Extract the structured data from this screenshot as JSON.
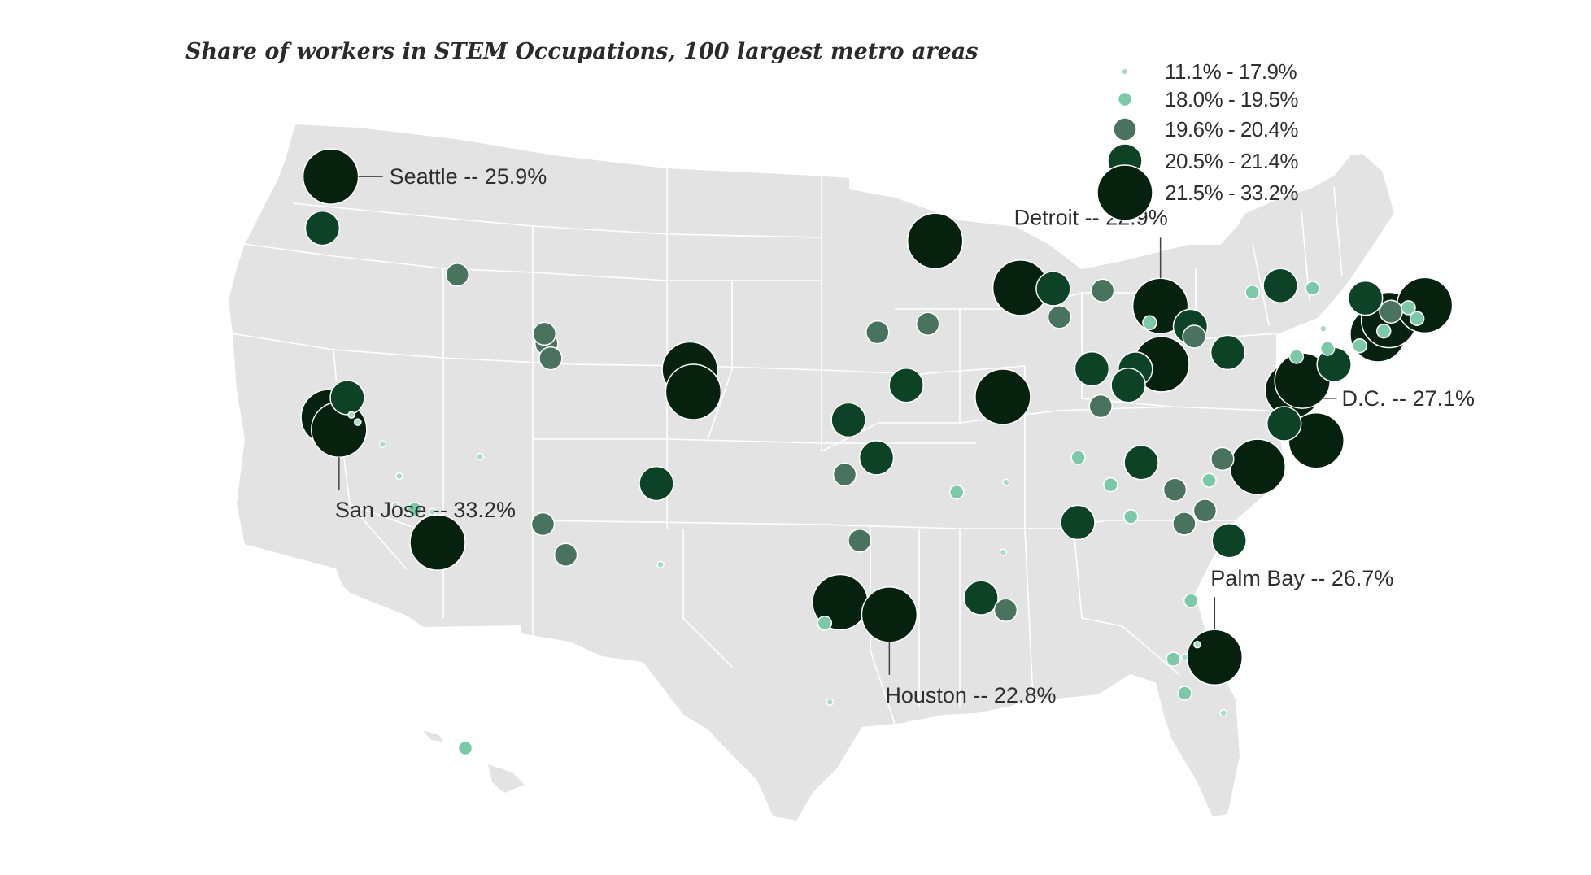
{
  "title": "Share of workers in STEM Occupations, 100 largest metro areas",
  "colors": {
    "land": "#e3e3e3",
    "border": "#ffffff",
    "bins": [
      "#a8dcc8",
      "#7cc8a9",
      "#4a735f",
      "#0e4227",
      "#06220f"
    ]
  },
  "legend": [
    {
      "label": "11.1% - 17.9%",
      "bin": 0
    },
    {
      "label": "18.0% - 19.5%",
      "bin": 1
    },
    {
      "label": "19.6% - 20.4%",
      "bin": 2
    },
    {
      "label": "20.5% - 21.4%",
      "bin": 3
    },
    {
      "label": "21.5% - 33.2%",
      "bin": 4
    }
  ],
  "callouts": [
    {
      "city": "Seattle",
      "text": "Seattle -- 25.9%"
    },
    {
      "city": "Detroit",
      "text": "Detroit -- 22.9%"
    },
    {
      "city": "D.C.",
      "text": "D.C. -- 27.1%"
    },
    {
      "city": "San Jose",
      "text": "San Jose -- 33.2%"
    },
    {
      "city": "Palm Bay",
      "text": "Palm Bay -- 26.7%"
    },
    {
      "city": "Houston",
      "text": "Houston -- 22.8%"
    }
  ],
  "metros": [
    {
      "name": "Seattle",
      "lat": 47.6,
      "lon": -122.3,
      "bin": 4
    },
    {
      "name": "Portland",
      "lat": 45.5,
      "lon": -122.7,
      "bin": 3
    },
    {
      "name": "Boise",
      "lat": 43.6,
      "lon": -116.2,
      "bin": 2
    },
    {
      "name": "Salt Lake City",
      "lat": 40.8,
      "lon": -111.9,
      "bin": 2
    },
    {
      "name": "Ogden",
      "lat": 41.2,
      "lon": -112.0,
      "bin": 2
    },
    {
      "name": "Provo",
      "lat": 40.2,
      "lon": -111.7,
      "bin": 2
    },
    {
      "name": "San Francisco",
      "lat": 37.8,
      "lon": -122.4,
      "bin": 4
    },
    {
      "name": "San Jose",
      "lat": 37.3,
      "lon": -121.9,
      "bin": 4
    },
    {
      "name": "Sacramento",
      "lat": 38.6,
      "lon": -121.5,
      "bin": 3
    },
    {
      "name": "Stockton",
      "lat": 37.9,
      "lon": -121.3,
      "bin": 0
    },
    {
      "name": "Modesto",
      "lat": 37.6,
      "lon": -121.0,
      "bin": 0
    },
    {
      "name": "Fresno",
      "lat": 36.7,
      "lon": -119.8,
      "bin": 0
    },
    {
      "name": "Bakersfield",
      "lat": 35.4,
      "lon": -119.0,
      "bin": 0
    },
    {
      "name": "Los Angeles",
      "lat": 34.05,
      "lon": -118.25,
      "bin": 1
    },
    {
      "name": "Oxnard",
      "lat": 34.2,
      "lon": -119.2,
      "bin": 0
    },
    {
      "name": "Riverside",
      "lat": 33.95,
      "lon": -117.4,
      "bin": 0
    },
    {
      "name": "San Diego",
      "lat": 32.7,
      "lon": -117.15,
      "bin": 4
    },
    {
      "name": "Las Vegas",
      "lat": 36.2,
      "lon": -115.1,
      "bin": 0
    },
    {
      "name": "Phoenix",
      "lat": 33.45,
      "lon": -112.07,
      "bin": 2
    },
    {
      "name": "Tucson",
      "lat": 32.2,
      "lon": -110.97,
      "bin": 2
    },
    {
      "name": "Albuquerque",
      "lat": 35.1,
      "lon": -106.6,
      "bin": 3
    },
    {
      "name": "El Paso",
      "lat": 31.8,
      "lon": -106.4,
      "bin": 0
    },
    {
      "name": "Denver",
      "lat": 39.74,
      "lon": -104.99,
      "bin": 4
    },
    {
      "name": "Colorado Springs",
      "lat": 38.83,
      "lon": -104.82,
      "bin": 4
    },
    {
      "name": "Minneapolis",
      "lat": 44.98,
      "lon": -93.27,
      "bin": 4
    },
    {
      "name": "Omaha",
      "lat": 41.26,
      "lon": -95.94,
      "bin": 2
    },
    {
      "name": "Des Moines",
      "lat": 41.6,
      "lon": -93.6,
      "bin": 2
    },
    {
      "name": "Kansas City",
      "lat": 39.1,
      "lon": -94.58,
      "bin": 3
    },
    {
      "name": "Wichita",
      "lat": 37.69,
      "lon": -97.34,
      "bin": 3
    },
    {
      "name": "Tulsa",
      "lat": 36.15,
      "lon": -95.99,
      "bin": 3
    },
    {
      "name": "Oklahoma City",
      "lat": 35.47,
      "lon": -97.52,
      "bin": 2
    },
    {
      "name": "Dallas",
      "lat": 32.78,
      "lon": -96.8,
      "bin": 2
    },
    {
      "name": "Austin",
      "lat": 30.27,
      "lon": -97.74,
      "bin": 4
    },
    {
      "name": "San Antonio",
      "lat": 29.42,
      "lon": -98.49,
      "bin": 1
    },
    {
      "name": "Houston",
      "lat": 29.76,
      "lon": -95.37,
      "bin": 4
    },
    {
      "name": "McAllen",
      "lat": 26.2,
      "lon": -98.23,
      "bin": 0
    },
    {
      "name": "Little Rock",
      "lat": 34.75,
      "lon": -92.29,
      "bin": 1
    },
    {
      "name": "Baton Rouge",
      "lat": 30.45,
      "lon": -91.19,
      "bin": 3
    },
    {
      "name": "New Orleans",
      "lat": 29.95,
      "lon": -90.07,
      "bin": 2
    },
    {
      "name": "Jackson",
      "lat": 32.3,
      "lon": -90.18,
      "bin": 0
    },
    {
      "name": "Memphis",
      "lat": 35.15,
      "lon": -90.05,
      "bin": 0
    },
    {
      "name": "St. Louis",
      "lat": 38.63,
      "lon": -90.2,
      "bin": 4
    },
    {
      "name": "Madison",
      "lat": 43.07,
      "lon": -89.4,
      "bin": 4
    },
    {
      "name": "Milwaukee",
      "lat": 43.04,
      "lon": -87.91,
      "bin": 3
    },
    {
      "name": "Chicago",
      "lat": 41.88,
      "lon": -87.63,
      "bin": 2
    },
    {
      "name": "Grand Rapids",
      "lat": 42.96,
      "lon": -85.67,
      "bin": 2
    },
    {
      "name": "Detroit",
      "lat": 42.33,
      "lon": -83.05,
      "bin": 4
    },
    {
      "name": "Toledo",
      "lat": 41.65,
      "lon": -83.54,
      "bin": 1
    },
    {
      "name": "Cleveland",
      "lat": 41.5,
      "lon": -81.69,
      "bin": 3
    },
    {
      "name": "Akron",
      "lat": 41.08,
      "lon": -81.52,
      "bin": 2
    },
    {
      "name": "Pittsburgh",
      "lat": 40.44,
      "lon": -79.99,
      "bin": 3
    },
    {
      "name": "Columbus",
      "lat": 39.96,
      "lon": -83.0,
      "bin": 4
    },
    {
      "name": "Dayton",
      "lat": 39.76,
      "lon": -84.19,
      "bin": 3
    },
    {
      "name": "Cincinnati",
      "lat": 39.1,
      "lon": -84.51,
      "bin": 3
    },
    {
      "name": "Indianapolis",
      "lat": 39.77,
      "lon": -86.16,
      "bin": 3
    },
    {
      "name": "Louisville",
      "lat": 38.25,
      "lon": -85.76,
      "bin": 2
    },
    {
      "name": "Nashville",
      "lat": 36.16,
      "lon": -86.78,
      "bin": 1
    },
    {
      "name": "Knoxville",
      "lat": 35.96,
      "lon": -83.92,
      "bin": 3
    },
    {
      "name": "Chattanooga",
      "lat": 35.05,
      "lon": -85.31,
      "bin": 1
    },
    {
      "name": "Birmingham",
      "lat": 33.52,
      "lon": -86.8,
      "bin": 3
    },
    {
      "name": "Atlanta",
      "lat": 33.75,
      "lon": -84.39,
      "bin": 1
    },
    {
      "name": "Greenville",
      "lat": 34.85,
      "lon": -82.39,
      "bin": 2
    },
    {
      "name": "Columbia",
      "lat": 34.0,
      "lon": -81.03,
      "bin": 2
    },
    {
      "name": "Charlotte",
      "lat": 35.23,
      "lon": -80.84,
      "bin": 1
    },
    {
      "name": "Winston-Salem",
      "lat": 36.1,
      "lon": -80.24,
      "bin": 2
    },
    {
      "name": "Raleigh",
      "lat": 35.78,
      "lon": -78.64,
      "bin": 4
    },
    {
      "name": "Virginia Beach",
      "lat": 36.85,
      "lon": -75.98,
      "bin": 4
    },
    {
      "name": "Richmond",
      "lat": 37.54,
      "lon": -77.44,
      "bin": 3
    },
    {
      "name": "Charleston",
      "lat": 32.78,
      "lon": -79.93,
      "bin": 3
    },
    {
      "name": "Augusta",
      "lat": 33.47,
      "lon": -81.97,
      "bin": 2
    },
    {
      "name": "Jacksonville",
      "lat": 30.33,
      "lon": -81.66,
      "bin": 1
    },
    {
      "name": "Orlando",
      "lat": 28.54,
      "lon": -81.38,
      "bin": 0
    },
    {
      "name": "Palm Bay",
      "lat": 28.03,
      "lon": -80.59,
      "bin": 4
    },
    {
      "name": "Tampa",
      "lat": 27.95,
      "lon": -82.46,
      "bin": 1
    },
    {
      "name": "Lakeland",
      "lat": 28.04,
      "lon": -81.95,
      "bin": 0
    },
    {
      "name": "Cape Coral",
      "lat": 26.56,
      "lon": -81.95,
      "bin": 1
    },
    {
      "name": "Miami",
      "lat": 25.76,
      "lon": -80.19,
      "bin": 0
    },
    {
      "name": "Washington",
      "lat": 38.9,
      "lon": -77.04,
      "bin": 4
    },
    {
      "name": "Baltimore",
      "lat": 39.29,
      "lon": -76.61,
      "bin": 4
    },
    {
      "name": "Harrisburg",
      "lat": 40.27,
      "lon": -76.88,
      "bin": 1
    },
    {
      "name": "Philadelphia",
      "lat": 39.95,
      "lon": -75.17,
      "bin": 3
    },
    {
      "name": "Allentown",
      "lat": 40.6,
      "lon": -75.47,
      "bin": 1
    },
    {
      "name": "New York",
      "lat": 40.71,
      "lon": -74.01,
      "bin": 1
    },
    {
      "name": "Scranton",
      "lat": 41.41,
      "lon": -75.66,
      "bin": 0
    },
    {
      "name": "Bridgeport",
      "lat": 41.18,
      "lon": -73.19,
      "bin": 4
    },
    {
      "name": "New Haven",
      "lat": 41.31,
      "lon": -72.92,
      "bin": 1
    },
    {
      "name": "Hartford",
      "lat": 41.76,
      "lon": -72.68,
      "bin": 4
    },
    {
      "name": "Springfield",
      "lat": 42.1,
      "lon": -72.59,
      "bin": 2
    },
    {
      "name": "Worcester",
      "lat": 42.26,
      "lon": -71.8,
      "bin": 1
    },
    {
      "name": "Providence",
      "lat": 41.82,
      "lon": -71.41,
      "bin": 1
    },
    {
      "name": "Boston",
      "lat": 42.36,
      "lon": -71.06,
      "bin": 4
    },
    {
      "name": "Albany",
      "lat": 42.65,
      "lon": -73.75,
      "bin": 3
    },
    {
      "name": "Syracuse",
      "lat": 43.05,
      "lon": -76.15,
      "bin": 1
    },
    {
      "name": "Rochester",
      "lat": 43.16,
      "lon": -77.61,
      "bin": 3
    },
    {
      "name": "Buffalo",
      "lat": 42.89,
      "lon": -78.88,
      "bin": 1
    },
    {
      "name": "Honolulu",
      "lat": 21.3,
      "lon": -157.86,
      "bin": 1
    }
  ]
}
